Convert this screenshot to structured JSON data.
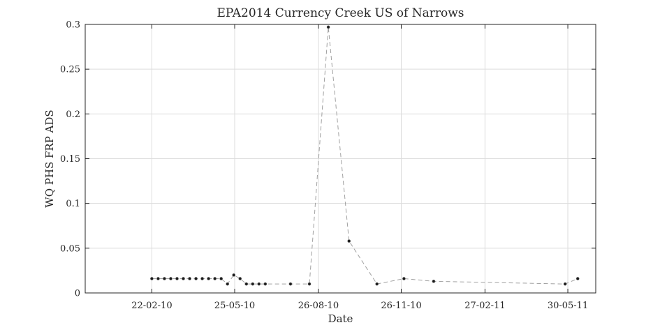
{
  "chart_data": {
    "type": "line",
    "title": "EPA2014 Currency Creek US of Narrows",
    "xlabel": "Date",
    "ylabel": "WQ PHS FRP ADS",
    "x_axis_type": "date",
    "xlim": [
      "2009-12-10",
      "2011-06-30"
    ],
    "ylim": [
      0,
      0.3
    ],
    "grid": true,
    "x_ticks": [
      {
        "value": "2010-02-22",
        "label": "22-02-10"
      },
      {
        "value": "2010-05-25",
        "label": "25-05-10"
      },
      {
        "value": "2010-08-26",
        "label": "26-08-10"
      },
      {
        "value": "2010-11-26",
        "label": "26-11-10"
      },
      {
        "value": "2011-02-27",
        "label": "27-02-11"
      },
      {
        "value": "2011-05-30",
        "label": "30-05-11"
      }
    ],
    "y_ticks": [
      {
        "value": 0,
        "label": "0"
      },
      {
        "value": 0.05,
        "label": "0.05"
      },
      {
        "value": 0.1,
        "label": "0.1"
      },
      {
        "value": 0.15,
        "label": "0.15"
      },
      {
        "value": 0.2,
        "label": "0.2"
      },
      {
        "value": 0.25,
        "label": "0.25"
      },
      {
        "value": 0.3,
        "label": "0.3"
      }
    ],
    "series": [
      {
        "line_style": "dashed",
        "line_color": "#a0a0a0",
        "marker_color": "#1a1a1a",
        "points": [
          {
            "x": "2010-02-22",
            "y": 0.016
          },
          {
            "x": "2010-03-01",
            "y": 0.016
          },
          {
            "x": "2010-03-08",
            "y": 0.016
          },
          {
            "x": "2010-03-15",
            "y": 0.016
          },
          {
            "x": "2010-03-22",
            "y": 0.016
          },
          {
            "x": "2010-03-29",
            "y": 0.016
          },
          {
            "x": "2010-04-05",
            "y": 0.016
          },
          {
            "x": "2010-04-12",
            "y": 0.016
          },
          {
            "x": "2010-04-19",
            "y": 0.016
          },
          {
            "x": "2010-04-26",
            "y": 0.016
          },
          {
            "x": "2010-05-03",
            "y": 0.016
          },
          {
            "x": "2010-05-10",
            "y": 0.016
          },
          {
            "x": "2010-05-17",
            "y": 0.01
          },
          {
            "x": "2010-05-24",
            "y": 0.02
          },
          {
            "x": "2010-05-31",
            "y": 0.016
          },
          {
            "x": "2010-06-07",
            "y": 0.01
          },
          {
            "x": "2010-06-14",
            "y": 0.01
          },
          {
            "x": "2010-06-21",
            "y": 0.01
          },
          {
            "x": "2010-06-28",
            "y": 0.01
          },
          {
            "x": "2010-07-26",
            "y": 0.01
          },
          {
            "x": "2010-08-16",
            "y": 0.01
          },
          {
            "x": "2010-09-06",
            "y": 0.297
          },
          {
            "x": "2010-09-29",
            "y": 0.058
          },
          {
            "x": "2010-10-30",
            "y": 0.01
          },
          {
            "x": "2010-11-29",
            "y": 0.016
          },
          {
            "x": "2011-01-01",
            "y": 0.013
          },
          {
            "x": "2011-05-27",
            "y": 0.01
          },
          {
            "x": "2011-06-10",
            "y": 0.016
          }
        ]
      }
    ]
  }
}
